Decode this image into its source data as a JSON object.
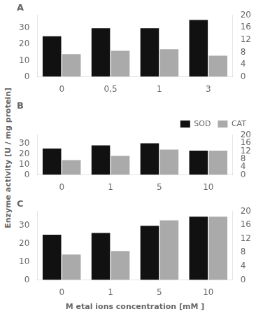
{
  "chart_data": [
    {
      "type": "bar",
      "title": "A",
      "categories": [
        "0",
        "0,5",
        "1",
        "3"
      ],
      "series": [
        {
          "color": "#111111",
          "values": [
            25,
            30,
            30,
            35
          ]
        },
        {
          "color": "#aaaaaa",
          "values": [
            14,
            16,
            17,
            13
          ]
        }
      ],
      "ylim": [
        0,
        38
      ],
      "yticks": [
        0,
        10,
        20,
        30
      ],
      "y2lim": [
        0,
        20
      ],
      "y2ticks": [
        0,
        4,
        8,
        12,
        16,
        20
      ],
      "grid": false
    },
    {
      "type": "bar",
      "title": "B",
      "ylabel": "Enzyme activity [U / mg protein]",
      "categories": [
        "0",
        "1",
        "5",
        "10"
      ],
      "series": [
        {
          "name": "SOD",
          "color": "#111111",
          "values": [
            25,
            28,
            30,
            23
          ]
        },
        {
          "name": "CAT",
          "color": "#aaaaaa",
          "values": [
            14,
            18,
            24,
            23
          ]
        }
      ],
      "ylim": [
        0,
        38
      ],
      "yticks": [
        0,
        10,
        20,
        30
      ],
      "y2lim": [
        0,
        20
      ],
      "y2ticks": [
        0,
        4,
        8,
        12,
        16,
        20
      ],
      "grid": false,
      "legend": "upper right"
    },
    {
      "type": "bar",
      "title": "C",
      "xlabel": "M etal ions concentration [mM ]",
      "categories": [
        "0",
        "1",
        "5",
        "10"
      ],
      "series": [
        {
          "color": "#111111",
          "values": [
            25,
            26,
            30,
            35
          ]
        },
        {
          "color": "#aaaaaa",
          "values": [
            14,
            16,
            33,
            35
          ]
        }
      ],
      "ylim": [
        0,
        38
      ],
      "yticks": [
        0,
        10,
        20,
        30
      ],
      "y2lim": [
        0,
        20
      ],
      "y2ticks": [
        0,
        4,
        8,
        12,
        16,
        20
      ],
      "grid": false
    }
  ]
}
